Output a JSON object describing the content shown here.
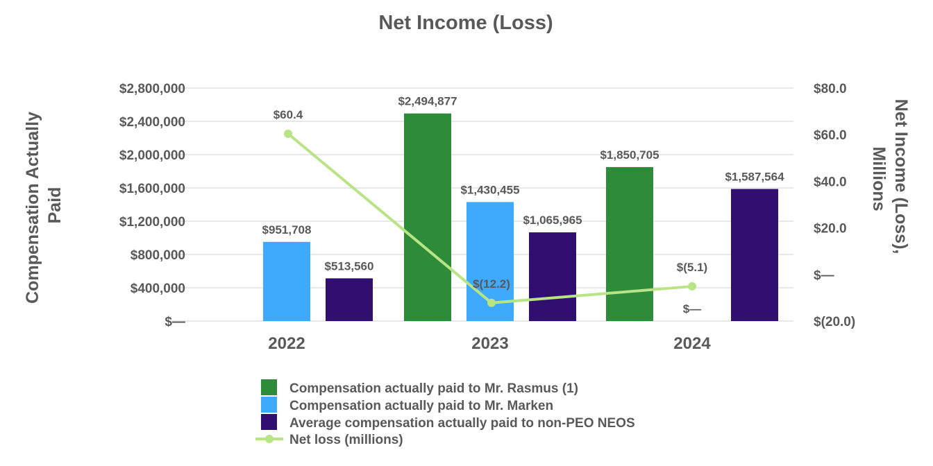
{
  "chart_data": {
    "type": "bar",
    "title": "Net Income (Loss)",
    "ylabel": "Compensation Actually Paid",
    "y2label": "Net Income (Loss), Millions",
    "categories": [
      "2022",
      "2023",
      "2024"
    ],
    "ylim": [
      0,
      2800000
    ],
    "y2lim": [
      -20,
      80
    ],
    "y_ticks": [
      "$—",
      "$400,000",
      "$800,000",
      "$1,200,000",
      "$1,600,000",
      "$2,000,000",
      "$2,400,000",
      "$2,800,000"
    ],
    "y_tick_values": [
      0,
      400000,
      800000,
      1200000,
      1600000,
      2000000,
      2400000,
      2800000
    ],
    "y2_ticks": [
      "$(20.0)",
      "$—",
      "$20.0",
      "$40.0",
      "$60.0",
      "$80.0"
    ],
    "y2_tick_values": [
      -20,
      0,
      20,
      40,
      60,
      80
    ],
    "gridlines": true,
    "legend_position": "bottom",
    "series": [
      {
        "name": "Compensation actually paid to Mr. Rasmus (1)",
        "color": "#2e8b3a",
        "values": [
          null,
          2494877,
          1850705
        ],
        "labels": [
          "",
          "$2,494,877",
          "$1,850,705"
        ]
      },
      {
        "name": "Compensation actually paid to Mr. Marken",
        "color": "#3daafb",
        "values": [
          951708,
          1430455,
          0
        ],
        "labels": [
          "$951,708",
          "$1,430,455",
          "$—"
        ]
      },
      {
        "name": "Average compensation actually paid to non-PEO NEOS",
        "color": "#300f70",
        "values": [
          513560,
          1065965,
          1587564
        ],
        "labels": [
          "$513,560",
          "$1,065,965",
          "$1,587,564"
        ]
      }
    ],
    "line_series": {
      "name": "Net loss (millions)",
      "color": "#b8e486",
      "axis": "right",
      "values": [
        60.4,
        -12.2,
        -5.1
      ],
      "labels": [
        "$60.4",
        "$(12.2)",
        "$(5.1)"
      ]
    }
  }
}
